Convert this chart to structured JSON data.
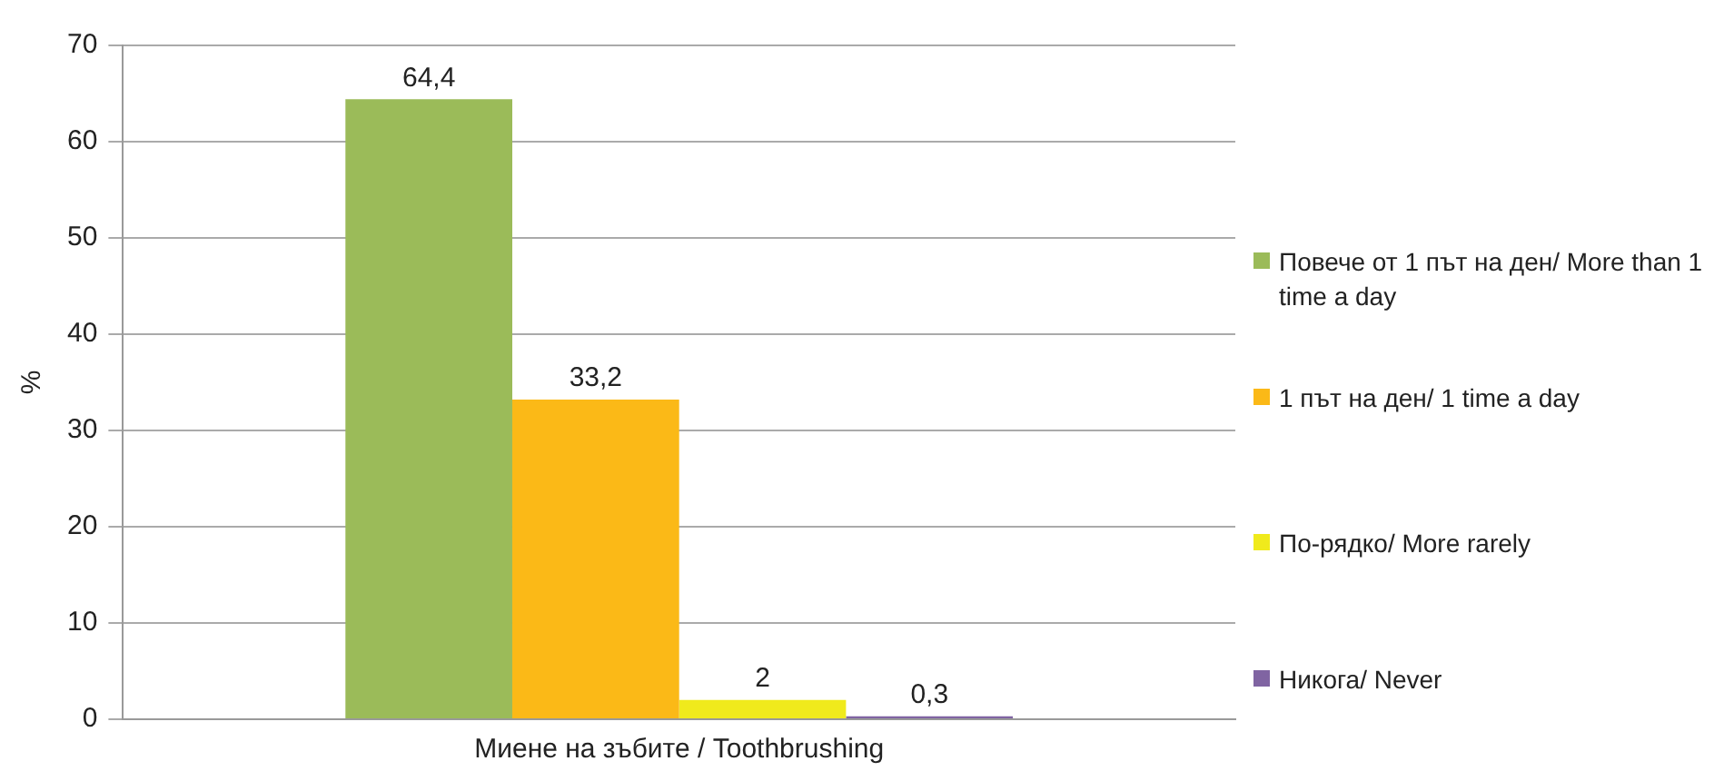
{
  "chart_data": {
    "type": "bar",
    "ylabel": "%",
    "xlabel": null,
    "categories": [
      "Миене на зъбите / Toothbrushing"
    ],
    "series": [
      {
        "name": "Повече от 1 път на ден/ More than 1 time a day",
        "color": "#9bbb59",
        "values": [
          64.4
        ],
        "value_labels": [
          "64,4"
        ]
      },
      {
        "name": "1 път на ден/ 1 time a day",
        "color": "#fbb917",
        "values": [
          33.2
        ],
        "value_labels": [
          "33,2"
        ]
      },
      {
        "name": "По-рядко/ More rarely",
        "color": "#f0ea1c",
        "values": [
          2
        ],
        "value_labels": [
          "2"
        ]
      },
      {
        "name": "Никога/ Never",
        "color": "#8064a2",
        "values": [
          0.3
        ],
        "value_labels": [
          "0,3"
        ]
      }
    ],
    "ylim": [
      0,
      70
    ],
    "yticks": [
      0,
      10,
      20,
      30,
      40,
      50,
      60,
      70
    ],
    "grid": "y",
    "legend": "right"
  }
}
